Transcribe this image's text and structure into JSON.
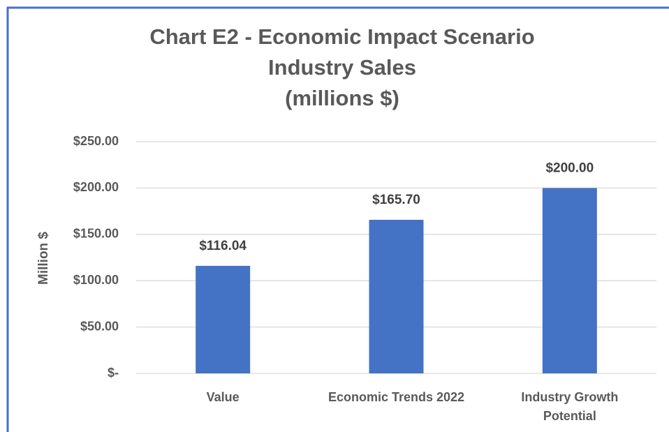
{
  "chart_data": {
    "type": "bar",
    "title": [
      "Chart E2 - Economic Impact Scenario",
      "Industry Sales",
      "(millions $)"
    ],
    "ylabel": "Million $",
    "categories": [
      "Value",
      "Economic Trends 2022",
      "Industry Growth Potential"
    ],
    "values": [
      116.04,
      165.7,
      200
    ],
    "value_labels": [
      "$116.04",
      "$165.70",
      "$200.00"
    ],
    "color": "#4472c4",
    "ylim": [
      0,
      250
    ],
    "yticks": [
      {
        "value": 0,
        "label": "$-"
      },
      {
        "value": 50,
        "label": "$50.00"
      },
      {
        "value": 100,
        "label": "$100.00"
      },
      {
        "value": 150,
        "label": "$150.00"
      },
      {
        "value": 200,
        "label": "$200.00"
      },
      {
        "value": 250,
        "label": "$250.00"
      }
    ],
    "grid": true
  }
}
